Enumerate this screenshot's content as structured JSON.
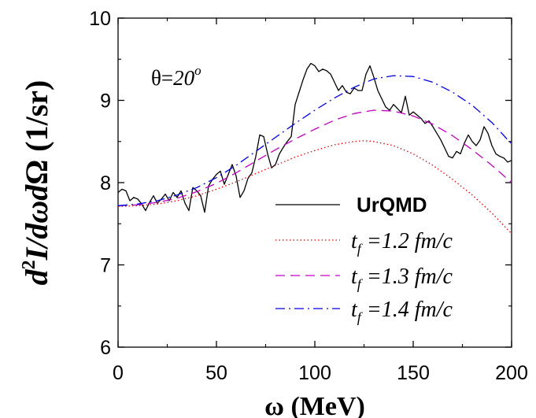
{
  "chart_data": {
    "type": "line",
    "ylabel": "d²I/dωdΩ (1/sr)",
    "xlabel": "ω (MeV)",
    "annotation": "θ=20°",
    "xlim": [
      0,
      200
    ],
    "ylim": [
      6,
      10
    ],
    "xticks": [
      0,
      50,
      100,
      150,
      200
    ],
    "yticks": [
      6,
      7,
      8,
      9,
      10
    ],
    "grid": false,
    "legend_position": "bottom-right",
    "series": [
      {
        "name": "UrQMD",
        "color": "#000000",
        "style": "solid",
        "x": [
          0,
          2,
          4,
          6,
          8,
          10,
          12,
          14,
          16,
          18,
          20,
          22,
          24,
          26,
          28,
          30,
          32,
          34,
          36,
          38,
          40,
          42,
          44,
          46,
          48,
          50,
          52,
          54,
          56,
          58,
          60,
          62,
          64,
          66,
          68,
          70,
          72,
          74,
          76,
          78,
          80,
          82,
          84,
          86,
          88,
          90,
          92,
          94,
          96,
          98,
          100,
          102,
          104,
          106,
          108,
          110,
          112,
          114,
          116,
          118,
          120,
          122,
          124,
          126,
          128,
          130,
          132,
          134,
          136,
          138,
          140,
          142,
          144,
          146,
          148,
          150,
          152,
          154,
          156,
          158,
          160,
          162,
          164,
          166,
          168,
          170,
          172,
          174,
          176,
          178,
          180,
          182,
          184,
          186,
          188,
          190,
          192,
          194,
          196,
          198,
          200
        ],
        "y": [
          7.88,
          7.92,
          7.9,
          7.78,
          7.82,
          7.8,
          7.74,
          7.66,
          7.76,
          7.84,
          7.75,
          7.8,
          7.86,
          7.78,
          7.88,
          7.82,
          7.9,
          7.75,
          7.66,
          7.94,
          7.9,
          7.84,
          7.64,
          7.96,
          8.04,
          8.1,
          8.14,
          7.98,
          8.1,
          8.22,
          8.08,
          7.82,
          7.9,
          8.05,
          8.12,
          8.32,
          8.58,
          8.56,
          8.35,
          8.18,
          8.22,
          8.35,
          8.43,
          8.5,
          8.56,
          8.95,
          9.1,
          9.25,
          9.38,
          9.45,
          9.42,
          9.35,
          9.38,
          9.36,
          9.32,
          9.22,
          9.12,
          9.18,
          9.1,
          9.08,
          9.15,
          9.12,
          9.12,
          9.32,
          9.42,
          9.28,
          9.12,
          9.02,
          8.92,
          8.88,
          8.95,
          8.9,
          8.85,
          9.05,
          8.82,
          8.86,
          8.82,
          8.78,
          8.72,
          8.75,
          8.68,
          8.6,
          8.52,
          8.42,
          8.32,
          8.3,
          8.38,
          8.35,
          8.48,
          8.58,
          8.5,
          8.45,
          8.52,
          8.68,
          8.6,
          8.45,
          8.35,
          8.32,
          8.3,
          8.25,
          8.27
        ]
      },
      {
        "name": "t_f =1.2 fm/c",
        "color": "#e00000",
        "style": "dotted",
        "x": [
          0,
          10,
          20,
          30,
          40,
          50,
          60,
          70,
          80,
          90,
          100,
          110,
          120,
          125,
          130,
          140,
          150,
          160,
          170,
          180,
          190,
          200
        ],
        "y": [
          7.71,
          7.72,
          7.74,
          7.78,
          7.84,
          7.92,
          8.01,
          8.11,
          8.21,
          8.31,
          8.39,
          8.46,
          8.5,
          8.51,
          8.5,
          8.45,
          8.35,
          8.21,
          8.04,
          7.85,
          7.63,
          7.38
        ]
      },
      {
        "name": "t_f =1.3 fm/c",
        "color": "#c000c0",
        "style": "dashed",
        "x": [
          0,
          10,
          20,
          30,
          40,
          50,
          60,
          70,
          80,
          90,
          100,
          110,
          120,
          130,
          140,
          150,
          160,
          170,
          180,
          190,
          200
        ],
        "y": [
          7.72,
          7.73,
          7.76,
          7.81,
          7.89,
          7.99,
          8.12,
          8.26,
          8.4,
          8.53,
          8.65,
          8.76,
          8.84,
          8.88,
          8.87,
          8.81,
          8.71,
          8.57,
          8.4,
          8.21,
          8.0
        ]
      },
      {
        "name": "t_f =1.4 fm/c",
        "color": "#0000e0",
        "style": "dashdot",
        "x": [
          0,
          10,
          20,
          30,
          40,
          50,
          60,
          70,
          80,
          90,
          100,
          110,
          120,
          130,
          140,
          150,
          160,
          170,
          180,
          190,
          200
        ],
        "y": [
          7.72,
          7.74,
          7.78,
          7.85,
          7.94,
          8.06,
          8.21,
          8.38,
          8.55,
          8.72,
          8.88,
          9.03,
          9.16,
          9.26,
          9.3,
          9.29,
          9.22,
          9.1,
          8.94,
          8.73,
          8.47
        ]
      }
    ]
  }
}
